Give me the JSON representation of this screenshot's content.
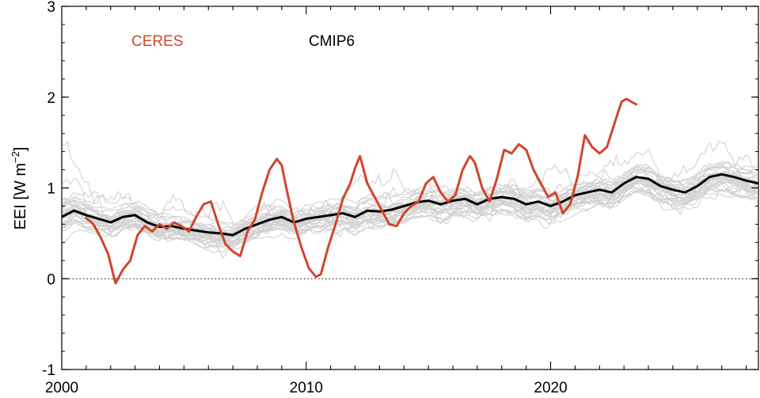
{
  "chart_data": {
    "type": "line",
    "title": "",
    "xlabel": "",
    "ylabel": "EEI [W m⁻²]",
    "ylabel_main": "EEI [W m",
    "ylabel_sup": "−2",
    "ylabel_end": "]",
    "xlim": [
      2000,
      2028.5
    ],
    "ylim": [
      -1,
      3
    ],
    "xticks": [
      2000,
      2010,
      2020
    ],
    "yticks": [
      -1,
      0,
      1,
      2,
      3
    ],
    "reference_line": 0,
    "grid": false,
    "legend_placement": "top-left",
    "colors": {
      "ceres": "#d0462c",
      "cmip6_mean": "#000000",
      "ensemble": "#d2d2d2",
      "axes": "#000000"
    },
    "series": [
      {
        "name": "CERES",
        "color": "#d0462c",
        "x": [
          2001.0,
          2001.3,
          2001.6,
          2001.9,
          2002.2,
          2002.5,
          2002.8,
          2003.1,
          2003.4,
          2003.7,
          2004.0,
          2004.3,
          2004.6,
          2004.9,
          2005.2,
          2005.5,
          2005.8,
          2006.1,
          2006.4,
          2006.7,
          2007.0,
          2007.3,
          2007.6,
          2007.9,
          2008.2,
          2008.5,
          2008.8,
          2009.0,
          2009.2,
          2009.5,
          2009.8,
          2010.1,
          2010.4,
          2010.6,
          2010.9,
          2011.2,
          2011.5,
          2011.8,
          2012.0,
          2012.2,
          2012.5,
          2012.8,
          2013.1,
          2013.4,
          2013.7,
          2014.0,
          2014.3,
          2014.6,
          2014.9,
          2015.2,
          2015.5,
          2015.8,
          2016.1,
          2016.4,
          2016.7,
          2016.9,
          2017.2,
          2017.5,
          2017.8,
          2018.1,
          2018.4,
          2018.7,
          2019.0,
          2019.3,
          2019.6,
          2019.9,
          2020.2,
          2020.5,
          2020.8,
          2021.1,
          2021.4,
          2021.7,
          2022.0,
          2022.3,
          2022.6,
          2022.9,
          2023.1,
          2023.3,
          2023.5
        ],
        "values": [
          0.67,
          0.6,
          0.45,
          0.27,
          -0.05,
          0.1,
          0.2,
          0.48,
          0.58,
          0.52,
          0.6,
          0.55,
          0.62,
          0.58,
          0.52,
          0.68,
          0.82,
          0.85,
          0.6,
          0.38,
          0.3,
          0.25,
          0.52,
          0.65,
          0.95,
          1.2,
          1.32,
          1.25,
          0.98,
          0.62,
          0.35,
          0.12,
          0.02,
          0.05,
          0.35,
          0.6,
          0.88,
          1.05,
          1.22,
          1.35,
          1.05,
          0.9,
          0.75,
          0.6,
          0.58,
          0.72,
          0.8,
          0.85,
          1.05,
          1.12,
          0.95,
          0.85,
          0.92,
          1.2,
          1.35,
          1.28,
          1.0,
          0.85,
          1.1,
          1.42,
          1.38,
          1.48,
          1.42,
          1.2,
          1.05,
          0.9,
          0.95,
          0.72,
          0.82,
          1.12,
          1.58,
          1.45,
          1.38,
          1.45,
          1.7,
          1.95,
          1.98,
          1.95,
          1.92
        ]
      },
      {
        "name": "CMIP6",
        "color": "#000000",
        "x": [
          2000.0,
          2000.5,
          2001.0,
          2001.5,
          2002.0,
          2002.5,
          2003.0,
          2003.5,
          2004.0,
          2004.5,
          2005.0,
          2005.5,
          2006.0,
          2006.5,
          2007.0,
          2007.5,
          2008.0,
          2008.5,
          2009.0,
          2009.5,
          2010.0,
          2010.5,
          2011.0,
          2011.5,
          2012.0,
          2012.5,
          2013.0,
          2013.5,
          2014.0,
          2014.5,
          2015.0,
          2015.5,
          2016.0,
          2016.5,
          2017.0,
          2017.5,
          2018.0,
          2018.5,
          2019.0,
          2019.5,
          2020.0,
          2020.5,
          2021.0,
          2021.5,
          2022.0,
          2022.5,
          2023.0,
          2023.5,
          2024.0,
          2024.5,
          2025.0,
          2025.5,
          2026.0,
          2026.5,
          2027.0,
          2027.5,
          2028.0,
          2028.5
        ],
        "values": [
          0.68,
          0.75,
          0.7,
          0.66,
          0.62,
          0.68,
          0.7,
          0.62,
          0.57,
          0.58,
          0.55,
          0.53,
          0.51,
          0.5,
          0.48,
          0.55,
          0.6,
          0.65,
          0.68,
          0.62,
          0.66,
          0.68,
          0.7,
          0.72,
          0.68,
          0.75,
          0.74,
          0.76,
          0.8,
          0.84,
          0.86,
          0.82,
          0.86,
          0.88,
          0.82,
          0.88,
          0.9,
          0.88,
          0.82,
          0.85,
          0.8,
          0.85,
          0.92,
          0.95,
          0.98,
          0.95,
          1.05,
          1.12,
          1.1,
          1.02,
          0.98,
          0.95,
          1.02,
          1.12,
          1.15,
          1.12,
          1.08,
          1.05
        ]
      }
    ]
  }
}
